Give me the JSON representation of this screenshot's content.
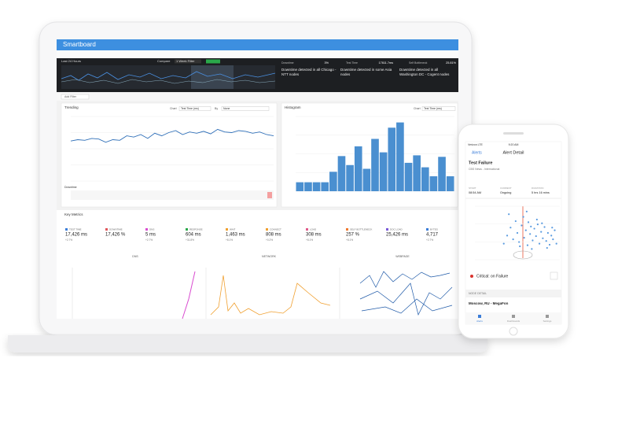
{
  "header": {
    "title": "Smartboard",
    "range": "Last 24 Hours",
    "compare_label": "Compare",
    "compare_value": "1 Week Filter",
    "add_filter": "Add Filter"
  },
  "stats": [
    {
      "label": "Downtime",
      "value": "3%"
    },
    {
      "label": "Test Time",
      "value": "17611.7ms"
    },
    {
      "label": "Self Bottleneck",
      "value": "25.81%"
    }
  ],
  "alerts": [
    "Downtime detected in all Chicago - NTT nodes",
    "Downtime detected in some Asia nodes",
    "Downtime detected in all Washington DC - Cogent nodes"
  ],
  "trending": {
    "title": "Trending",
    "chart_label": "Chart",
    "chart_value": "Test Time (ms)",
    "by_label": "By",
    "by_value": "None",
    "downtime_label": "Downtime",
    "ylim": [
      0,
      100
    ],
    "values": [
      62,
      64,
      63,
      66,
      65,
      60,
      64,
      63,
      70,
      68,
      72,
      66,
      74,
      70,
      75,
      78,
      72,
      76,
      74,
      77,
      73,
      80,
      76,
      75,
      78,
      77,
      74,
      76,
      72,
      70
    ]
  },
  "histogram": {
    "title": "Histogram",
    "chart_label": "Chart",
    "chart_value": "Test Time (ms)",
    "ylim": [
      0,
      100
    ],
    "values": [
      12,
      12,
      12,
      12,
      26,
      47,
      35,
      60,
      30,
      70,
      52,
      85,
      92,
      38,
      48,
      32,
      20,
      46,
      20
    ]
  },
  "key_metrics": {
    "title": "Key Metrics",
    "items": [
      {
        "name": "TEST TIME",
        "value": "17,426 ms",
        "change": "+2.7%",
        "color": "#3b7dd8"
      },
      {
        "name": "DOWNTIME",
        "value": "17,426 %",
        "change": "",
        "color": "#e0565b"
      },
      {
        "name": "DNS",
        "value": "5 ms",
        "change": "+2.7%",
        "color": "#d94bd0"
      },
      {
        "name": "RESPONSE",
        "value": "604 ms",
        "change": "+31.8%",
        "color": "#2aa84a"
      },
      {
        "name": "WAIT",
        "value": "1,463 ms",
        "change": "+8.1%",
        "color": "#f0a030"
      },
      {
        "name": "CONNECT",
        "value": "808 ms",
        "change": "+0.2%",
        "color": "#f0a030"
      },
      {
        "name": "LOAD",
        "value": "308 ms",
        "change": "+8.1%",
        "color": "#e05a8a"
      },
      {
        "name": "SELF BOTTLENECK",
        "value": "257 %",
        "change": "+8.1%",
        "color": "#f07a30"
      },
      {
        "name": "DOC LOAD",
        "value": "25,426 ms",
        "change": "",
        "color": "#7a5ad8"
      },
      {
        "name": "BYTES",
        "value": "4,717",
        "change": "+2.7%",
        "color": "#3b7dd8"
      }
    ],
    "charts": [
      "DNS",
      "NETWORK",
      "WEBPAGE"
    ]
  },
  "phone": {
    "carrier": "Verizon LTE",
    "time": "9:20 AM",
    "back": "Alerts",
    "title": "Alert Detail",
    "alert_title": "Test Failure",
    "alert_sub": "CBS News - International",
    "cols": [
      {
        "label": "START",
        "value": "08:54 AM"
      },
      {
        "label": "CURRENT",
        "value": "Ongoing"
      },
      {
        "label": "DURATION",
        "value": "5 hrs 16 mins"
      }
    ],
    "critical": "Critical: on Failure",
    "node_detail": "NODE DETAIL",
    "node": "Moscow, RU - MegaFon",
    "tabs": [
      "Alerts",
      "Dashboards",
      "Settings"
    ],
    "scatter": {
      "xlim": [
        0,
        100
      ],
      "ylim": [
        0,
        100
      ],
      "x": [
        34,
        38,
        42,
        45,
        48,
        50,
        52,
        55,
        57,
        58,
        60,
        62,
        63,
        65,
        66,
        68,
        70,
        72,
        74,
        76,
        78,
        80,
        82,
        84,
        86,
        88,
        90,
        92,
        94,
        96,
        40,
        53,
        61,
        67,
        73,
        79,
        85,
        91
      ],
      "y": [
        30,
        45,
        60,
        38,
        72,
        50,
        33,
        64,
        80,
        41,
        55,
        27,
        70,
        48,
        62,
        36,
        58,
        44,
        66,
        30,
        52,
        40,
        61,
        35,
        50,
        28,
        45,
        38,
        55,
        30,
        85,
        25,
        90,
        20,
        75,
        68,
        22,
        60
      ]
    }
  }
}
